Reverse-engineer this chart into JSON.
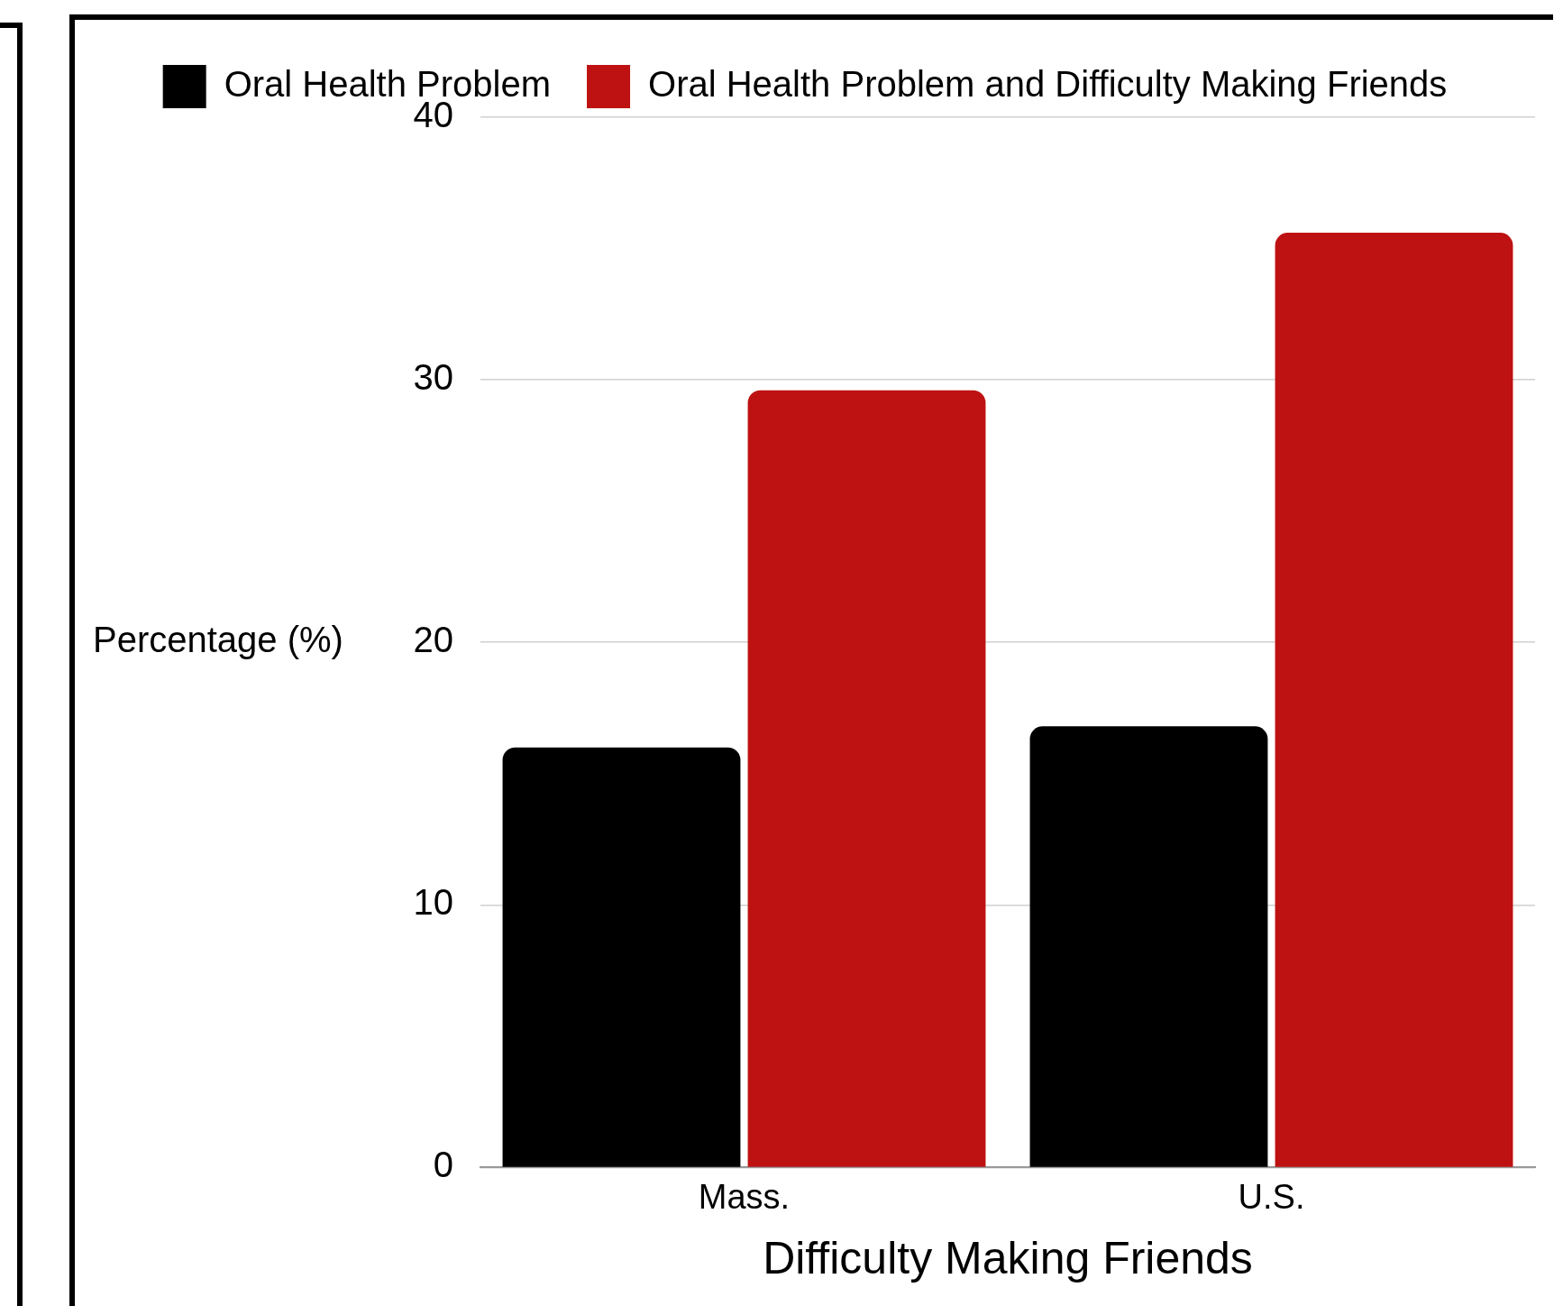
{
  "chart_data": {
    "type": "bar",
    "xlabel": "Difficulty Making Friends",
    "ylabel": "Percentage (%)",
    "categories": [
      "Mass.",
      "U.S."
    ],
    "series": [
      {
        "name": "Oral Health Problem",
        "color": "#000000",
        "values": [
          16,
          16.8
        ]
      },
      {
        "name": "Oral Health Problem and Difficulty Making Friends",
        "color": "#be1212",
        "values": [
          29.6,
          35.6
        ]
      }
    ],
    "ylim": [
      0,
      40
    ],
    "yticks": [
      0,
      10,
      20,
      30,
      40
    ],
    "grid": "y",
    "legend": "top"
  }
}
